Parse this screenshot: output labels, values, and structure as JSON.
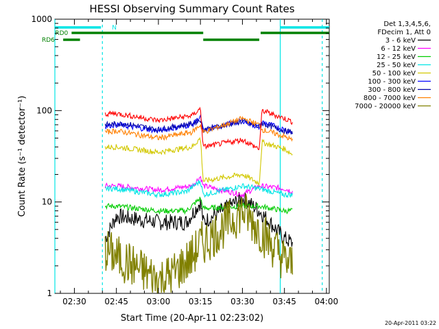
{
  "chart_data": {
    "type": "line",
    "title": "HESSI Observing Summary Count Rates",
    "xlabel": "Start Time (20-Apr-11 02:23:02)",
    "ylabel": "Count Rate (s⁻¹ detector⁻¹)",
    "y_scale": "log",
    "ylim": [
      1,
      1000
    ],
    "xlim": [
      "02:23:02",
      "04:01:00"
    ],
    "x_ticks": [
      "02:30",
      "02:45",
      "03:00",
      "03:15",
      "03:30",
      "03:45",
      "04:00"
    ],
    "y_ticks": [
      "1",
      "10",
      "100",
      "1000"
    ],
    "grid": false,
    "legend_position": "right",
    "legend_header": [
      "Det 1,3,4,5,6,",
      "FDecim 1, Att 0"
    ],
    "series": [
      {
        "name": "3 - 6 keV",
        "color": "#000000",
        "points": [
          [
            "02:41",
            4
          ],
          [
            "02:45",
            7
          ],
          [
            "03:00",
            6
          ],
          [
            "03:10",
            6
          ],
          [
            "03:15",
            10
          ],
          [
            "03:16",
            6
          ],
          [
            "03:30",
            11
          ],
          [
            "03:36",
            8
          ],
          [
            "03:45",
            4
          ],
          [
            "03:48",
            3.5
          ]
        ]
      },
      {
        "name": "6 - 12 keV",
        "color": "#ff00ff",
        "points": [
          [
            "02:41",
            15
          ],
          [
            "02:45",
            15
          ],
          [
            "03:00",
            13.5
          ],
          [
            "03:12",
            15
          ],
          [
            "03:15",
            19
          ],
          [
            "03:16",
            15
          ],
          [
            "03:30",
            12
          ],
          [
            "03:36",
            15
          ],
          [
            "03:45",
            14
          ],
          [
            "03:48",
            13
          ]
        ]
      },
      {
        "name": "12 - 25 keV",
        "color": "#00cc00",
        "points": [
          [
            "02:41",
            9
          ],
          [
            "02:45",
            9
          ],
          [
            "03:00",
            8
          ],
          [
            "03:10",
            8
          ],
          [
            "03:15",
            11
          ],
          [
            "03:16",
            8.5
          ],
          [
            "03:30",
            9
          ],
          [
            "03:36",
            9
          ],
          [
            "03:45",
            8
          ],
          [
            "03:48",
            8
          ]
        ]
      },
      {
        "name": "25 - 50 keV",
        "color": "#00e5e5",
        "points": [
          [
            "02:41",
            14
          ],
          [
            "02:45",
            14
          ],
          [
            "03:00",
            12
          ],
          [
            "03:10",
            13
          ],
          [
            "03:15",
            17
          ],
          [
            "03:16",
            12
          ],
          [
            "03:30",
            15
          ],
          [
            "03:36",
            14
          ],
          [
            "03:45",
            12
          ],
          [
            "03:48",
            12
          ]
        ]
      },
      {
        "name": "50 - 100 keV",
        "color": "#d2c800",
        "points": [
          [
            "02:41",
            40
          ],
          [
            "02:45",
            40
          ],
          [
            "03:00",
            35
          ],
          [
            "03:12",
            40
          ],
          [
            "03:15",
            50
          ],
          [
            "03:16",
            17
          ],
          [
            "03:30",
            20
          ],
          [
            "03:36",
            16
          ],
          [
            "03:37",
            45
          ],
          [
            "03:45",
            38
          ],
          [
            "03:48",
            33
          ]
        ]
      },
      {
        "name": "100 - 300 keV",
        "color": "#0000ff",
        "points": [
          [
            "02:41",
            68
          ],
          [
            "02:45",
            70
          ],
          [
            "03:00",
            60
          ],
          [
            "03:12",
            70
          ],
          [
            "03:15",
            85
          ],
          [
            "03:16",
            60
          ],
          [
            "03:30",
            78
          ],
          [
            "03:36",
            65
          ],
          [
            "03:37",
            75
          ],
          [
            "03:45",
            62
          ],
          [
            "03:48",
            57
          ]
        ]
      },
      {
        "name": "300 - 800 keV",
        "color": "#0000aa",
        "points": [
          [
            "02:41",
            70
          ],
          [
            "02:48",
            72
          ],
          [
            "03:00",
            62
          ],
          [
            "03:12",
            72
          ],
          [
            "03:15",
            80
          ],
          [
            "03:16",
            62
          ],
          [
            "03:30",
            76
          ],
          [
            "03:36",
            66
          ],
          [
            "03:37",
            72
          ],
          [
            "03:45",
            60
          ],
          [
            "03:48",
            58
          ]
        ]
      },
      {
        "name": "800 - 7000 keV",
        "color": "#ff8000",
        "points": [
          [
            "02:41",
            58
          ],
          [
            "02:45",
            60
          ],
          [
            "03:00",
            50
          ],
          [
            "03:12",
            58
          ],
          [
            "03:15",
            70
          ],
          [
            "03:16",
            58
          ],
          [
            "03:30",
            82
          ],
          [
            "03:36",
            70
          ],
          [
            "03:37",
            62
          ],
          [
            "03:45",
            52
          ],
          [
            "03:48",
            47
          ]
        ]
      },
      {
        "name": "7000 - 20000 keV",
        "color": "#808000",
        "points": [
          [
            "02:41",
            3
          ],
          [
            "02:45",
            2.5
          ],
          [
            "03:00",
            1.4
          ],
          [
            "03:05",
            1.6
          ],
          [
            "03:12",
            2.5
          ],
          [
            "03:15",
            3.5
          ],
          [
            "03:16",
            3.5
          ],
          [
            "03:30",
            8
          ],
          [
            "03:36",
            5
          ],
          [
            "03:45",
            2.3
          ],
          [
            "03:48",
            2
          ]
        ]
      },
      {
        "name": "",
        "color": "#ff0000",
        "points": [
          [
            "02:41",
            92
          ],
          [
            "02:45",
            93
          ],
          [
            "03:00",
            78
          ],
          [
            "03:12",
            88
          ],
          [
            "03:15",
            105
          ],
          [
            "03:16",
            40
          ],
          [
            "03:30",
            48
          ],
          [
            "03:36",
            38
          ],
          [
            "03:37",
            100
          ],
          [
            "03:45",
            82
          ],
          [
            "03:48",
            75
          ]
        ]
      }
    ],
    "status_bars": [
      {
        "label": "N",
        "color": "#00e5e5",
        "level": 1,
        "segments": [
          [
            "02:23:02",
            "02:39:30"
          ],
          [
            "03:43:30",
            "04:01:00"
          ]
        ]
      },
      {
        "label": "RD0",
        "color": "#008000",
        "level": 2,
        "segments": [
          [
            "02:29",
            "03:16"
          ],
          [
            "03:36:30",
            "04:01:00"
          ]
        ]
      },
      {
        "label": "RD6",
        "color": "#008000",
        "level": 3,
        "segments": [
          [
            "02:26",
            "02:32"
          ],
          [
            "03:16",
            "03:36"
          ]
        ]
      }
    ],
    "vertical_lines": [
      {
        "x": "02:23:02",
        "style": "solid",
        "color": "#00e5e5"
      },
      {
        "x": "02:40:00",
        "style": "dashed",
        "color": "#00e5e5"
      },
      {
        "x": "03:43:30",
        "style": "solid",
        "color": "#00e5e5"
      },
      {
        "x": "03:58:30",
        "style": "dashed",
        "color": "#00e5e5"
      }
    ]
  },
  "footer": {
    "timestamp": "20-Apr-2011 03:22"
  }
}
